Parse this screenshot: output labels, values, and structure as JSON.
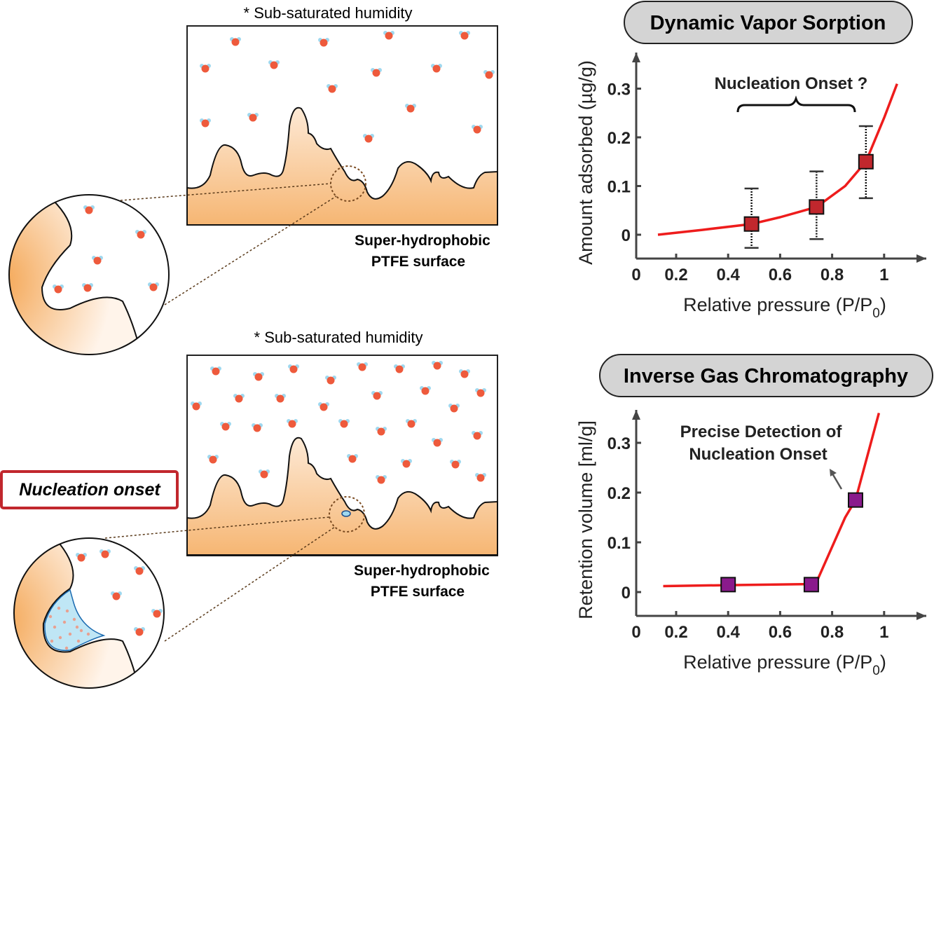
{
  "panels": {
    "top": {
      "humidity_note": "* Sub-saturated humidity",
      "surface_label_1": "Super-hydrophobic",
      "surface_label_2": "PTFE surface"
    },
    "bottom": {
      "humidity_note": "* Sub-saturated humidity",
      "surface_label_1": "Super-hydrophobic",
      "surface_label_2": "PTFE surface",
      "callout": "Nucleation onset"
    }
  },
  "colors": {
    "surface": "#f5b66e",
    "molecule": "#ee5a3c",
    "hydrogen": "#9fd8ef",
    "curve": "#ee1c1c",
    "dvs_marker": "#c1272d",
    "igc_marker": "#8a1a8c",
    "callout_border": "#c1272d"
  },
  "chart_data": [
    {
      "type": "line",
      "title": "Dynamic Vapor Sorption",
      "xlabel": "Relative pressure (P/P",
      "xlabel_sub": "0",
      "xlabel_end": ")",
      "ylabel": "Amount adsorbed (µg/g)",
      "xticks": [
        "0",
        "0.2",
        "0.4",
        "0.6",
        "0.8",
        "1"
      ],
      "yticks": [
        "0",
        "0.1",
        "0.2",
        "0.3"
      ],
      "annotation": "Nucleation Onset ?",
      "curve": {
        "x": [
          0.13,
          0.3,
          0.49,
          0.6,
          0.74,
          0.85,
          0.93,
          1.0,
          1.05
        ],
        "y": [
          0.0,
          0.01,
          0.022,
          0.036,
          0.057,
          0.1,
          0.15,
          0.24,
          0.31
        ]
      },
      "points": [
        {
          "x": 0.49,
          "y": 0.022,
          "err_high": 0.095,
          "err_low": -0.027
        },
        {
          "x": 0.74,
          "y": 0.057,
          "err_high": 0.13,
          "err_low": -0.009
        },
        {
          "x": 0.93,
          "y": 0.15,
          "err_high": 0.223,
          "err_low": 0.075
        }
      ]
    },
    {
      "type": "line",
      "title": "Inverse Gas Chromatography",
      "xlabel": "Relative pressure (P/P",
      "xlabel_sub": "0",
      "xlabel_end": ")",
      "ylabel": "Retention volume [ml/g]",
      "xticks": [
        "0",
        "0.2",
        "0.4",
        "0.6",
        "0.8",
        "1"
      ],
      "yticks": [
        "0",
        "0.1",
        "0.2",
        "0.3"
      ],
      "annotation_1": "Precise Detection of",
      "annotation_2": "Nucleation Onset",
      "curve": {
        "x": [
          0.15,
          0.4,
          0.72,
          0.74,
          0.85,
          0.89,
          0.98
        ],
        "y": [
          0.012,
          0.014,
          0.016,
          0.02,
          0.15,
          0.185,
          0.36
        ]
      },
      "points": [
        {
          "x": 0.4,
          "y": 0.015
        },
        {
          "x": 0.72,
          "y": 0.015
        },
        {
          "x": 0.89,
          "y": 0.185
        }
      ]
    }
  ]
}
